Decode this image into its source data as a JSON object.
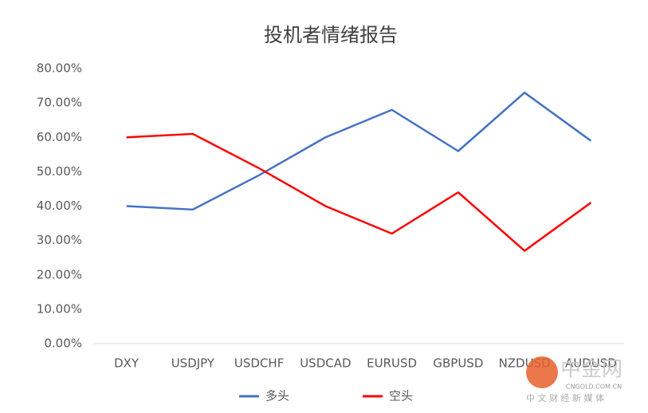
{
  "chart_data": {
    "type": "line",
    "title": "投机者情绪报告",
    "categories": [
      "DXY",
      "USDJPY",
      "USDCHF",
      "USDCAD",
      "EURUSD",
      "GBPUSD",
      "NZDUSD",
      "AUDUSD"
    ],
    "series": [
      {
        "name": "多头",
        "color": "#4472c4",
        "values": [
          40,
          39,
          49,
          60,
          68,
          56,
          73,
          59
        ]
      },
      {
        "name": "空头",
        "color": "#ff0000",
        "values": [
          60,
          61,
          51,
          40,
          32,
          44,
          27,
          41
        ]
      }
    ],
    "ylim": [
      0,
      80
    ],
    "yticks": [
      {
        "value": 0,
        "label": "0.00%"
      },
      {
        "value": 10,
        "label": "10.00%"
      },
      {
        "value": 20,
        "label": "20.00%"
      },
      {
        "value": 30,
        "label": "30.00%"
      },
      {
        "value": 40,
        "label": "40.00%"
      },
      {
        "value": 50,
        "label": "50.00%"
      },
      {
        "value": 60,
        "label": "60.00%"
      },
      {
        "value": 70,
        "label": "70.00%"
      },
      {
        "value": 80,
        "label": "80.00%"
      }
    ],
    "grid": false,
    "legend": "bottom"
  },
  "watermark": {
    "name": "中金网",
    "site": "CNGOLD.COM.CN",
    "tagline": "中 文 财 经 新 媒 体"
  }
}
